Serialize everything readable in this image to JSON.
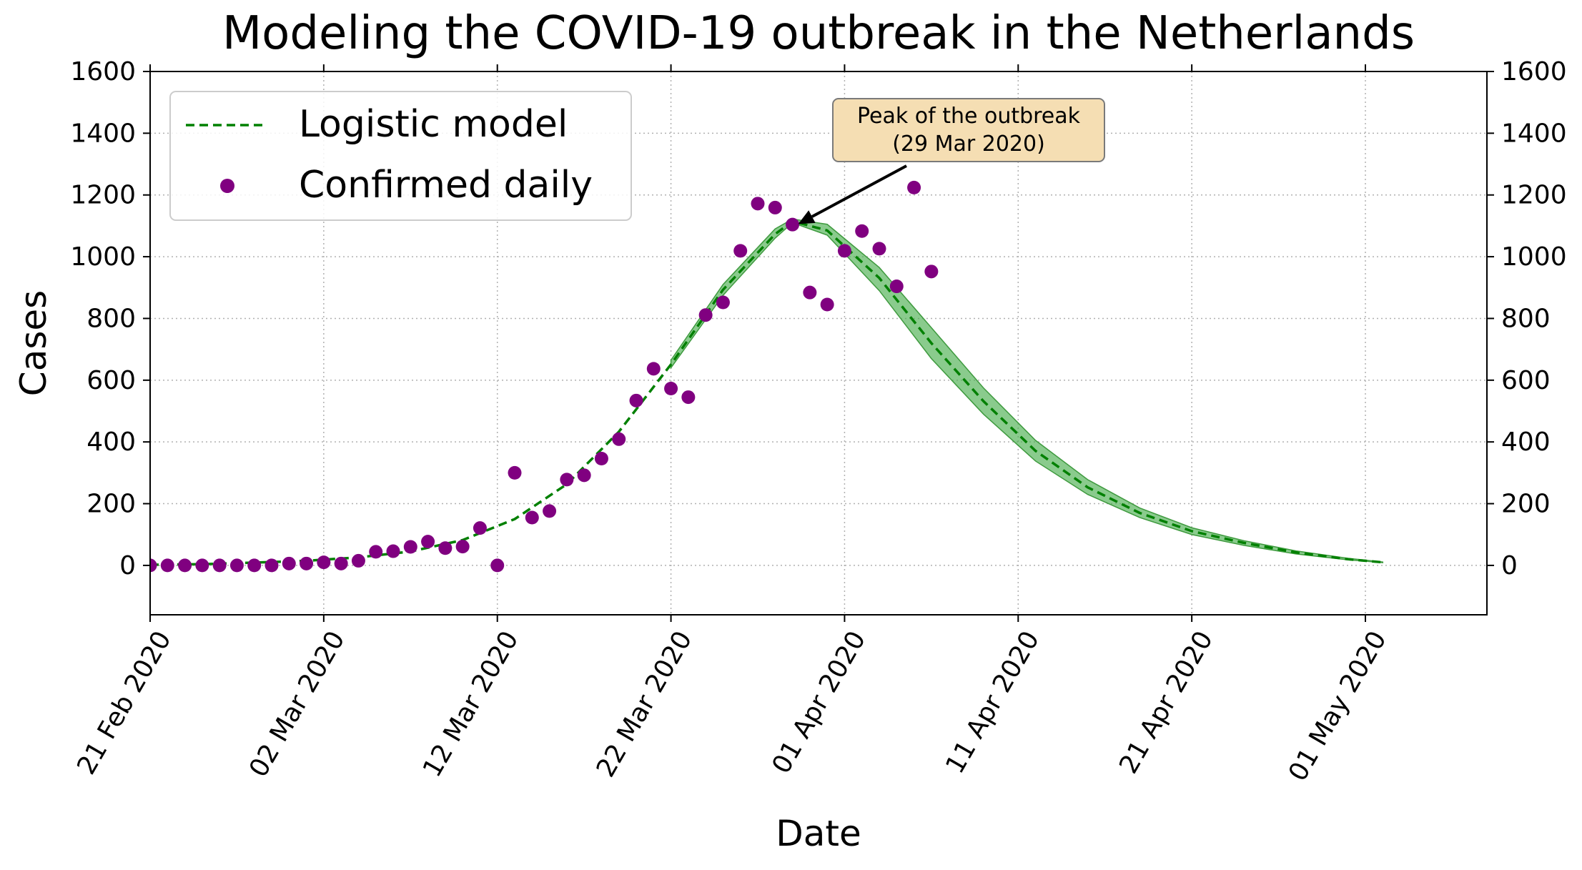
{
  "chart_data": {
    "type": "line",
    "title": "Modeling the COVID-19 outbreak in the Netherlands",
    "xlabel": "Date",
    "ylabel": "Cases",
    "ylim": [
      -160,
      1600
    ],
    "xlim": [
      "2020-02-21",
      "2020-05-08"
    ],
    "y_ticks": [
      "0",
      "200",
      "400",
      "600",
      "800",
      "1000",
      "1200",
      "1400",
      "1600"
    ],
    "x_ticks": [
      {
        "date": "2020-02-21",
        "label": "21 Feb 2020"
      },
      {
        "date": "2020-03-02",
        "label": "02 Mar 2020"
      },
      {
        "date": "2020-03-12",
        "label": "12 Mar 2020"
      },
      {
        "date": "2020-03-22",
        "label": "22 Mar 2020"
      },
      {
        "date": "2020-04-01",
        "label": "01 Apr 2020"
      },
      {
        "date": "2020-04-11",
        "label": "11 Apr 2020"
      },
      {
        "date": "2020-04-21",
        "label": "21 Apr 2020"
      },
      {
        "date": "2020-05-01",
        "label": "01 May 2020"
      }
    ],
    "grid": true,
    "legend_position": "top-left",
    "colors": {
      "model": "#008000",
      "band": "#4caf50",
      "points": "#800080",
      "annotation_bg": "#f5deb3"
    },
    "series": [
      {
        "name": "Logistic model",
        "kind": "line",
        "x": [
          "2020-02-21",
          "2020-02-24",
          "2020-02-27",
          "2020-03-01",
          "2020-03-04",
          "2020-03-07",
          "2020-03-10",
          "2020-03-13",
          "2020-03-16",
          "2020-03-19",
          "2020-03-22",
          "2020-03-25",
          "2020-03-28",
          "2020-03-29",
          "2020-03-31",
          "2020-04-03",
          "2020-04-06",
          "2020-04-09",
          "2020-04-12",
          "2020-04-15",
          "2020-04-18",
          "2020-04-21",
          "2020-04-24",
          "2020-04-27",
          "2020-04-30",
          "2020-05-02"
        ],
        "y": [
          2,
          4,
          9,
          15,
          26,
          45,
          82,
          150,
          263,
          433,
          651,
          893,
          1073,
          1115,
          1085,
          931,
          720,
          532,
          371,
          253,
          170,
          111,
          73,
          42,
          20,
          10
        ]
      },
      {
        "name": "",
        "kind": "band",
        "x": [
          "2020-03-22",
          "2020-03-25",
          "2020-03-28",
          "2020-03-29",
          "2020-03-31",
          "2020-04-03",
          "2020-04-06",
          "2020-04-09",
          "2020-04-12",
          "2020-04-15",
          "2020-04-18",
          "2020-04-21",
          "2020-04-24",
          "2020-04-27",
          "2020-04-30",
          "2020-05-02"
        ],
        "y_low": [
          640,
          875,
          1060,
          1110,
          1070,
          890,
          670,
          490,
          338,
          230,
          155,
          100,
          65,
          37,
          18,
          9
        ],
        "y_high": [
          665,
          910,
          1090,
          1122,
          1105,
          965,
          770,
          575,
          405,
          278,
          186,
          122,
          80,
          47,
          23,
          11
        ]
      },
      {
        "name": "Confirmed daily",
        "kind": "scatter",
        "x": [
          "2020-02-21",
          "2020-02-22",
          "2020-02-23",
          "2020-02-24",
          "2020-02-25",
          "2020-02-26",
          "2020-02-27",
          "2020-02-28",
          "2020-02-29",
          "2020-03-01",
          "2020-03-02",
          "2020-03-03",
          "2020-03-04",
          "2020-03-05",
          "2020-03-06",
          "2020-03-07",
          "2020-03-08",
          "2020-03-09",
          "2020-03-10",
          "2020-03-11",
          "2020-03-12",
          "2020-03-13",
          "2020-03-14",
          "2020-03-15",
          "2020-03-16",
          "2020-03-17",
          "2020-03-18",
          "2020-03-19",
          "2020-03-20",
          "2020-03-21",
          "2020-03-22",
          "2020-03-23",
          "2020-03-24",
          "2020-03-25",
          "2020-03-26",
          "2020-03-27",
          "2020-03-28",
          "2020-03-29",
          "2020-03-30",
          "2020-03-31",
          "2020-04-01",
          "2020-04-02",
          "2020-04-03",
          "2020-04-04",
          "2020-04-05",
          "2020-04-06"
        ],
        "y": [
          0,
          0,
          0,
          0,
          0,
          0,
          0,
          0,
          6,
          6,
          10,
          6,
          15,
          44,
          46,
          60,
          77,
          56,
          61,
          121,
          0,
          300,
          155,
          176,
          278,
          292,
          346,
          409,
          534,
          637,
          573,
          545,
          811,
          852,
          1019,
          1172,
          1159,
          1104,
          884,
          845,
          1019,
          1083,
          1026,
          904,
          1224,
          952
        ]
      }
    ],
    "annotations": [
      {
        "text_line1": "Peak of the outbreak",
        "text_line2": "(29 Mar 2020)",
        "target_x": "2020-03-29",
        "target_y": 1115
      }
    ]
  }
}
